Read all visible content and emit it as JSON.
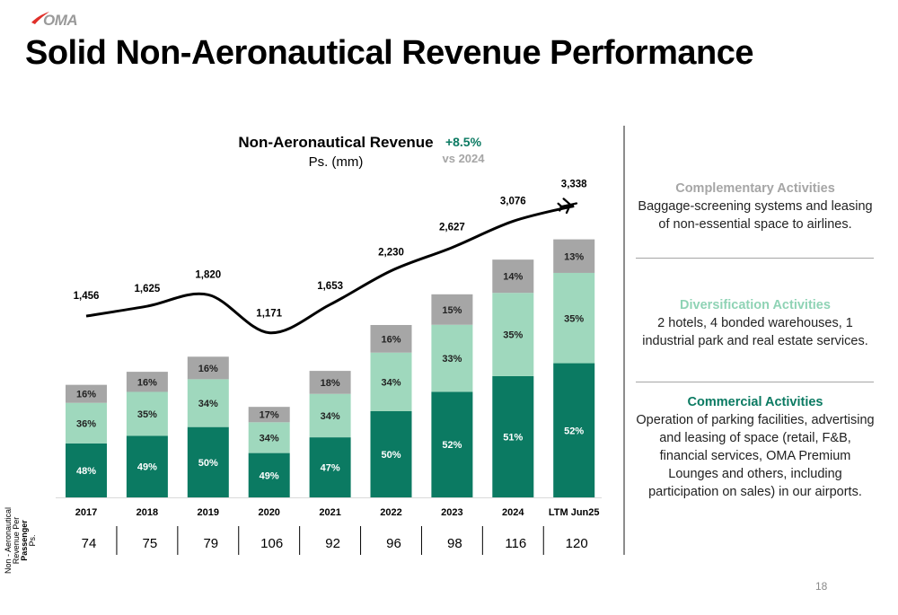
{
  "header": {
    "logo_text": "OMA",
    "title": "Solid Non-Aeronautical Revenue Performance"
  },
  "chart_data": {
    "type": "bar",
    "stacked": true,
    "title": "Non-Aeronautical Revenue",
    "subtitle": "Ps. (mm)",
    "growth": {
      "value": "+8.5%",
      "label": "vs 2024"
    },
    "categories": [
      "2017",
      "2018",
      "2019",
      "2020",
      "2021",
      "2022",
      "2023",
      "2024",
      "LTM Jun25"
    ],
    "series": [
      {
        "segment": "commercial",
        "color": "#0b7a62",
        "labels": [
          "48%",
          "49%",
          "50%",
          "49%",
          "47%",
          "50%",
          "52%",
          "51%",
          "52%"
        ]
      },
      {
        "segment": "diversification",
        "color": "#9fd8bd",
        "labels": [
          "36%",
          "35%",
          "34%",
          "34%",
          "34%",
          "34%",
          "33%",
          "35%",
          "35%"
        ]
      },
      {
        "segment": "complementary",
        "color": "#a6a6a6",
        "labels": [
          "16%",
          "16%",
          "16%",
          "17%",
          "18%",
          "16%",
          "15%",
          "14%",
          "13%"
        ]
      }
    ],
    "line": {
      "values": [
        1456,
        1625,
        1820,
        1171,
        1653,
        2230,
        2627,
        3076,
        3338
      ],
      "labels": [
        "1,456",
        "1,625",
        "1,820",
        "1,171",
        "1,653",
        "2,230",
        "2,627",
        "3,076",
        "3,338"
      ]
    },
    "per_passenger": {
      "label_lines": [
        "Non - Aeronautical",
        "Revenue Per",
        "Passenger",
        "Ps."
      ],
      "values": [
        "74",
        "75",
        "79",
        "106",
        "92",
        "96",
        "98",
        "116",
        "120"
      ]
    }
  },
  "activities": [
    {
      "title": "Complementary Activities",
      "color": "#a6a6a6",
      "description": "Baggage-screening systems and leasing of non-essential space to airlines."
    },
    {
      "title": "Diversification Activities",
      "color": "#8fd3b5",
      "description": "2 hotels, 4 bonded warehouses, 1 industrial park and real estate services."
    },
    {
      "title": "Commercial Activities",
      "color": "#0b7a62",
      "description": "Operation of parking facilities, advertising and leasing of space (retail, F&B, financial services, OMA Premium Lounges and others, including participation on sales) in our airports."
    }
  ],
  "footer": {
    "page_number": "18"
  }
}
